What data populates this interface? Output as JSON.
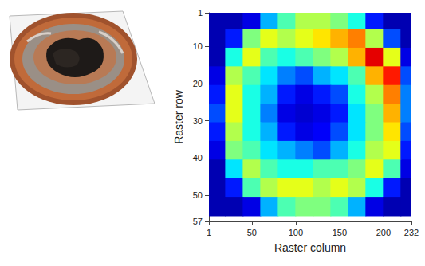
{
  "chart_data": {
    "type": "heatmap",
    "x_label": "Raster column",
    "y_label": "Raster row",
    "xlim": [
      1,
      232
    ],
    "ylim": [
      1,
      57
    ],
    "xticks": [
      1,
      50,
      100,
      150,
      200,
      232
    ],
    "yticks": [
      1,
      10,
      20,
      30,
      40,
      50,
      57
    ],
    "zlim": [
      0,
      100
    ],
    "x": [
      10,
      30,
      50,
      70,
      90,
      110,
      130,
      150,
      170,
      190,
      210,
      230
    ],
    "y": [
      3,
      8,
      13,
      18,
      23,
      28,
      33,
      38,
      43,
      48,
      53
    ],
    "values": [
      [
        5,
        5,
        10,
        30,
        45,
        55,
        55,
        50,
        40,
        15,
        5,
        5
      ],
      [
        5,
        15,
        50,
        60,
        55,
        60,
        65,
        70,
        75,
        55,
        20,
        5
      ],
      [
        5,
        40,
        60,
        45,
        40,
        45,
        50,
        55,
        70,
        90,
        60,
        10
      ],
      [
        10,
        55,
        45,
        35,
        25,
        20,
        30,
        35,
        45,
        70,
        85,
        20
      ],
      [
        15,
        60,
        40,
        30,
        15,
        10,
        15,
        20,
        40,
        55,
        75,
        25
      ],
      [
        20,
        60,
        40,
        25,
        10,
        8,
        10,
        15,
        35,
        50,
        70,
        25
      ],
      [
        15,
        55,
        40,
        30,
        15,
        10,
        12,
        20,
        35,
        50,
        65,
        20
      ],
      [
        10,
        50,
        45,
        35,
        30,
        25,
        20,
        30,
        40,
        55,
        60,
        15
      ],
      [
        5,
        35,
        55,
        45,
        40,
        40,
        45,
        45,
        50,
        60,
        45,
        10
      ],
      [
        5,
        15,
        45,
        55,
        60,
        60,
        55,
        60,
        55,
        40,
        15,
        5
      ],
      [
        5,
        5,
        10,
        30,
        45,
        50,
        50,
        45,
        30,
        10,
        5,
        5
      ]
    ]
  }
}
